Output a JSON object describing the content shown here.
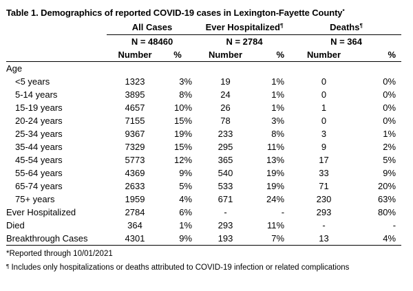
{
  "title": "Table 1. Demographics of reported COVID-19 cases in Lexington-Fayette County",
  "title_mark": "*",
  "groups": {
    "all_cases": {
      "label": "All Cases",
      "mark": "",
      "n": "N = 48460"
    },
    "hospitalized": {
      "label": "Ever Hospitalized",
      "mark": "¶",
      "n": "N = 2784"
    },
    "deaths": {
      "label": "Deaths",
      "mark": "¶",
      "n": "N = 364"
    }
  },
  "col_headers": {
    "number": "Number",
    "percent": "%"
  },
  "section_label": "Age",
  "rows": [
    {
      "label": "<5 years",
      "indent": true,
      "all_n": "1323",
      "all_p": "3%",
      "hosp_n": "19",
      "hosp_p": "1%",
      "death_n": "0",
      "death_p": "0%"
    },
    {
      "label": "5-14 years",
      "indent": true,
      "all_n": "3895",
      "all_p": "8%",
      "hosp_n": "24",
      "hosp_p": "1%",
      "death_n": "0",
      "death_p": "0%"
    },
    {
      "label": "15-19 years",
      "indent": true,
      "all_n": "4657",
      "all_p": "10%",
      "hosp_n": "26",
      "hosp_p": "1%",
      "death_n": "1",
      "death_p": "0%"
    },
    {
      "label": "20-24 years",
      "indent": true,
      "all_n": "7155",
      "all_p": "15%",
      "hosp_n": "78",
      "hosp_p": "3%",
      "death_n": "0",
      "death_p": "0%"
    },
    {
      "label": "25-34 years",
      "indent": true,
      "all_n": "9367",
      "all_p": "19%",
      "hosp_n": "233",
      "hosp_p": "8%",
      "death_n": "3",
      "death_p": "1%"
    },
    {
      "label": "35-44 years",
      "indent": true,
      "all_n": "7329",
      "all_p": "15%",
      "hosp_n": "295",
      "hosp_p": "11%",
      "death_n": "9",
      "death_p": "2%"
    },
    {
      "label": "45-54 years",
      "indent": true,
      "all_n": "5773",
      "all_p": "12%",
      "hosp_n": "365",
      "hosp_p": "13%",
      "death_n": "17",
      "death_p": "5%"
    },
    {
      "label": "55-64 years",
      "indent": true,
      "all_n": "4369",
      "all_p": "9%",
      "hosp_n": "540",
      "hosp_p": "19%",
      "death_n": "33",
      "death_p": "9%"
    },
    {
      "label": "65-74 years",
      "indent": true,
      "all_n": "2633",
      "all_p": "5%",
      "hosp_n": "533",
      "hosp_p": "19%",
      "death_n": "71",
      "death_p": "20%"
    },
    {
      "label": "75+ years",
      "indent": true,
      "all_n": "1959",
      "all_p": "4%",
      "hosp_n": "671",
      "hosp_p": "24%",
      "death_n": "230",
      "death_p": "63%"
    },
    {
      "label": "Ever Hospitalized",
      "indent": false,
      "all_n": "2784",
      "all_p": "6%",
      "hosp_n": "-",
      "hosp_p": "-",
      "death_n": "293",
      "death_p": "80%"
    },
    {
      "label": "Died",
      "indent": false,
      "all_n": "364",
      "all_p": "1%",
      "hosp_n": "293",
      "hosp_p": "11%",
      "death_n": "-",
      "death_p": "-"
    },
    {
      "label": "Breakthrough Cases",
      "indent": false,
      "all_n": "4301",
      "all_p": "9%",
      "hosp_n": "193",
      "hosp_p": "7%",
      "death_n": "13",
      "death_p": "4%"
    }
  ],
  "footnotes": {
    "reported": "*Reported through 10/01/2021",
    "includes_mark": "¶",
    "includes": " Includes only hospitalizations or deaths attributed to COVID-19 infection or related complications"
  }
}
